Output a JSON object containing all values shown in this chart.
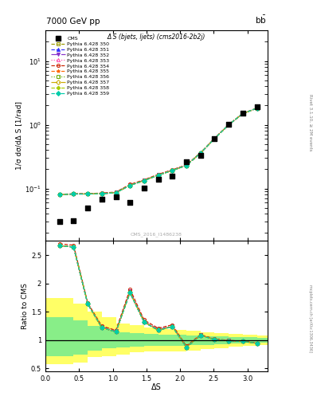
{
  "title_top": "7000 GeV pp",
  "title_top_right": "b$\\bar{b}$",
  "plot_title": "Δ S (bjets, ljets) (cms2016-2b2j)",
  "ylabel_main": "1/σ dσ/dΔ S [1/rad]",
  "ylabel_ratio": "Ratio to CMS",
  "xlabel": "ΔS",
  "right_label": "Rivet 3.1.10, ≥ 2M events",
  "watermark": "CMS_2016_I1486238",
  "mcplots_label": "mcplots.cern.ch [arXiv:1306.3436]",
  "cms_x": [
    0.2094,
    0.4189,
    0.6283,
    0.8378,
    1.0472,
    1.2566,
    1.4661,
    1.6755,
    1.885,
    2.0944,
    2.3038,
    2.5133,
    2.7227,
    2.9322,
    3.1416
  ],
  "cms_y": [
    0.03,
    0.031,
    0.05,
    0.068,
    0.075,
    0.061,
    0.101,
    0.138,
    0.155,
    0.263,
    0.332,
    0.602,
    1.013,
    1.536,
    1.93
  ],
  "py_x": [
    0.2094,
    0.4189,
    0.6283,
    0.8378,
    1.0472,
    1.2566,
    1.4661,
    1.6755,
    1.885,
    2.0944,
    2.3038,
    2.5133,
    2.7227,
    2.9322,
    3.1416
  ],
  "pythia_sets": [
    {
      "label": "Pythia 6.428 350",
      "color": "#999900",
      "marker": "s",
      "linestyle": "--",
      "fillstyle": "none",
      "y": [
        0.08,
        0.082,
        0.082,
        0.083,
        0.086,
        0.112,
        0.133,
        0.162,
        0.192,
        0.23,
        0.36,
        0.608,
        1.002,
        1.5,
        1.82
      ]
    },
    {
      "label": "Pythia 6.428 351",
      "color": "#3333ff",
      "marker": "^",
      "linestyle": "--",
      "fillstyle": "full",
      "y": [
        0.08,
        0.082,
        0.082,
        0.083,
        0.086,
        0.112,
        0.133,
        0.162,
        0.192,
        0.23,
        0.36,
        0.608,
        1.002,
        1.5,
        1.82
      ]
    },
    {
      "label": "Pythia 6.428 352",
      "color": "#8833cc",
      "marker": "v",
      "linestyle": "-.",
      "fillstyle": "full",
      "y": [
        0.08,
        0.082,
        0.082,
        0.084,
        0.087,
        0.114,
        0.135,
        0.164,
        0.194,
        0.232,
        0.362,
        0.61,
        1.005,
        1.502,
        1.82
      ]
    },
    {
      "label": "Pythia 6.428 353",
      "color": "#ff44aa",
      "marker": "^",
      "linestyle": ":",
      "fillstyle": "none",
      "y": [
        0.08,
        0.082,
        0.082,
        0.083,
        0.086,
        0.113,
        0.134,
        0.163,
        0.193,
        0.231,
        0.361,
        0.609,
        1.003,
        1.501,
        1.82
      ]
    },
    {
      "label": "Pythia 6.428 354",
      "color": "#cc2200",
      "marker": "o",
      "linestyle": "--",
      "fillstyle": "none",
      "y": [
        0.081,
        0.083,
        0.083,
        0.085,
        0.088,
        0.116,
        0.137,
        0.167,
        0.197,
        0.235,
        0.365,
        0.614,
        1.01,
        1.508,
        1.83
      ]
    },
    {
      "label": "Pythia 6.428 355",
      "color": "#ff6600",
      "marker": "*",
      "linestyle": "--",
      "fillstyle": "full",
      "y": [
        0.08,
        0.082,
        0.082,
        0.083,
        0.086,
        0.113,
        0.134,
        0.163,
        0.193,
        0.231,
        0.361,
        0.609,
        1.003,
        1.501,
        1.82
      ]
    },
    {
      "label": "Pythia 6.428 356",
      "color": "#66aa00",
      "marker": "s",
      "linestyle": ":",
      "fillstyle": "none",
      "y": [
        0.08,
        0.082,
        0.082,
        0.083,
        0.086,
        0.112,
        0.133,
        0.162,
        0.192,
        0.23,
        0.36,
        0.608,
        1.002,
        1.5,
        1.82
      ]
    },
    {
      "label": "Pythia 6.428 357",
      "color": "#ccaa00",
      "marker": "D",
      "linestyle": "-.",
      "fillstyle": "none",
      "y": [
        0.08,
        0.082,
        0.082,
        0.083,
        0.086,
        0.112,
        0.133,
        0.162,
        0.192,
        0.23,
        0.36,
        0.608,
        1.002,
        1.5,
        1.82
      ]
    },
    {
      "label": "Pythia 6.428 358",
      "color": "#aacc00",
      "marker": "P",
      "linestyle": "--",
      "fillstyle": "full",
      "y": [
        0.08,
        0.082,
        0.082,
        0.083,
        0.086,
        0.112,
        0.133,
        0.162,
        0.192,
        0.23,
        0.36,
        0.608,
        1.002,
        1.5,
        1.82
      ]
    },
    {
      "label": "Pythia 6.428 359",
      "color": "#00ccaa",
      "marker": "D",
      "linestyle": "--",
      "fillstyle": "full",
      "y": [
        0.08,
        0.082,
        0.082,
        0.083,
        0.086,
        0.112,
        0.133,
        0.162,
        0.192,
        0.23,
        0.36,
        0.608,
        1.002,
        1.5,
        1.82
      ]
    }
  ],
  "ylim_main": [
    0.015,
    30
  ],
  "ylim_ratio": [
    0.45,
    2.75
  ],
  "xlim": [
    0.0,
    3.3
  ],
  "band_edges": [
    0.0,
    0.2094,
    0.4189,
    0.6283,
    0.8378,
    1.0472,
    1.2566,
    1.4661,
    1.6755,
    1.885,
    2.0944,
    2.3038,
    2.5133,
    2.7227,
    2.9322,
    3.1416
  ],
  "yellow_low": [
    0.58,
    0.58,
    0.6,
    0.7,
    0.72,
    0.74,
    0.78,
    0.8,
    0.8,
    0.8,
    0.82,
    0.84,
    0.86,
    0.88,
    0.9,
    0.92
  ],
  "yellow_high": [
    1.75,
    1.75,
    1.65,
    1.5,
    1.4,
    1.3,
    1.26,
    1.22,
    1.2,
    1.18,
    1.16,
    1.14,
    1.12,
    1.11,
    1.1,
    1.08
  ],
  "green_low": [
    0.72,
    0.72,
    0.74,
    0.82,
    0.85,
    0.87,
    0.89,
    0.9,
    0.9,
    0.9,
    0.91,
    0.92,
    0.93,
    0.94,
    0.95,
    0.96
  ],
  "green_high": [
    1.4,
    1.4,
    1.35,
    1.25,
    1.18,
    1.14,
    1.12,
    1.11,
    1.1,
    1.09,
    1.08,
    1.07,
    1.07,
    1.06,
    1.05,
    1.04
  ]
}
